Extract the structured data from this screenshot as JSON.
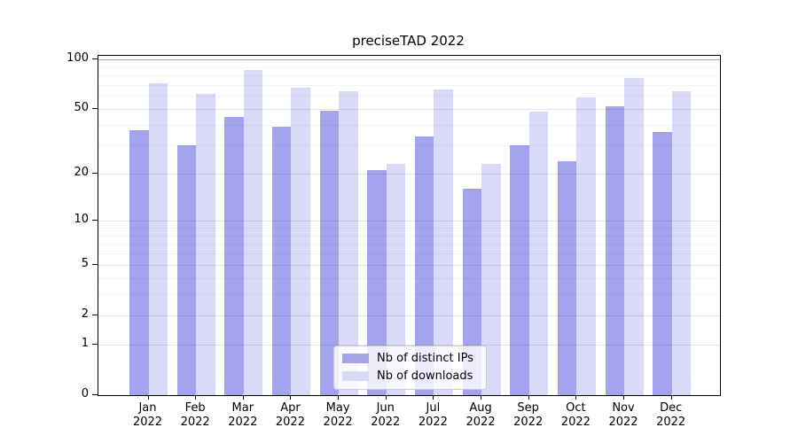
{
  "title": "preciseTAD 2022",
  "chart_data": {
    "type": "bar",
    "title": "preciseTAD 2022",
    "categories": [
      "Jan",
      "Feb",
      "Mar",
      "Apr",
      "May",
      "Jun",
      "Jul",
      "Aug",
      "Sep",
      "Oct",
      "Nov",
      "Dec"
    ],
    "year": "2022",
    "series": [
      {
        "name": "Nb of distinct IPs",
        "color": "#a3a3f0",
        "values": [
          37,
          30,
          45,
          39,
          49,
          21,
          34,
          16,
          30,
          24,
          52,
          36
        ]
      },
      {
        "name": "Nb of downloads",
        "color": "#d9d9f8",
        "values": [
          72,
          62,
          86,
          67,
          64,
          23,
          66,
          23,
          48,
          59,
          77,
          64
        ]
      }
    ],
    "yscale": "log1p",
    "yticks": [
      0,
      1,
      2,
      5,
      10,
      20,
      50,
      100
    ],
    "minor_yticks": [
      3,
      4,
      6,
      7,
      8,
      9,
      30,
      40,
      60,
      70,
      80,
      90
    ],
    "ylim": [
      0,
      105
    ],
    "grid": "on",
    "legend_position": "lower center"
  }
}
